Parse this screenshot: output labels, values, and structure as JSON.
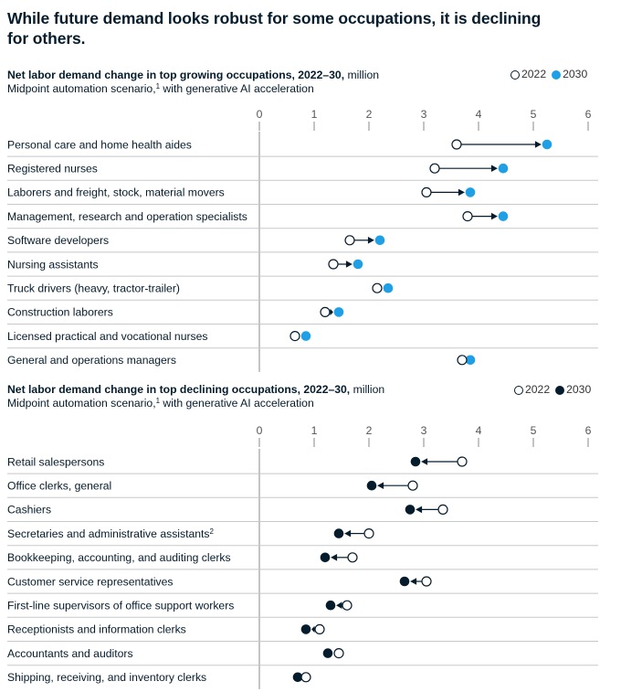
{
  "title": "While future demand looks robust for some occupations, it is declining for others.",
  "colors": {
    "dark": "#051c2c",
    "blue": "#1f9fe6",
    "divider": "#c8c8c8",
    "axis": "#888888"
  },
  "chart_data": [
    {
      "type": "dumbbell",
      "title_bold": "Net labor demand change in top growing occupations, 2022–30,",
      "title_unit": "million",
      "subtitle_pre": "Midpoint automation scenario,",
      "subtitle_sup": "1",
      "subtitle_post": " with generative AI acceleration",
      "legend": [
        "2022",
        "2030"
      ],
      "legend_position": "top-right",
      "end_color": "#1f9fe6",
      "xlim": [
        0,
        6
      ],
      "ticks": [
        "0",
        "1",
        "2",
        "3",
        "4",
        "5",
        "6"
      ],
      "rows": [
        {
          "label": "Personal care and home health aides",
          "y2022": 3.6,
          "y2030": 5.25
        },
        {
          "label": "Registered nurses",
          "y2022": 3.2,
          "y2030": 4.45
        },
        {
          "label": "Laborers and freight, stock, material movers",
          "y2022": 3.05,
          "y2030": 3.85
        },
        {
          "label": "Management, research and operation specialists",
          "y2022": 3.8,
          "y2030": 4.45
        },
        {
          "label": "Software developers",
          "y2022": 1.65,
          "y2030": 2.2
        },
        {
          "label": "Nursing assistants",
          "y2022": 1.35,
          "y2030": 1.8
        },
        {
          "label": "Truck drivers (heavy, tractor-trailer)",
          "y2022": 2.15,
          "y2030": 2.35
        },
        {
          "label": "Construction laborers",
          "y2022": 1.2,
          "y2030": 1.45
        },
        {
          "label": "Licensed practical and vocational nurses",
          "y2022": 0.65,
          "y2030": 0.85
        },
        {
          "label": "General and operations managers",
          "y2022": 3.7,
          "y2030": 3.85
        }
      ]
    },
    {
      "type": "dumbbell",
      "title_bold": "Net labor demand change in top declining occupations, 2022–30,",
      "title_unit": "million",
      "subtitle_pre": "Midpoint automation scenario,",
      "subtitle_sup": "1",
      "subtitle_post": " with generative AI acceleration",
      "legend": [
        "2022",
        "2030"
      ],
      "legend_position": "top-right",
      "end_color": "#051c2c",
      "xlim": [
        0,
        6
      ],
      "ticks": [
        "0",
        "1",
        "2",
        "3",
        "4",
        "5",
        "6"
      ],
      "rows": [
        {
          "label": "Retail salespersons",
          "y2022": 3.7,
          "y2030": 2.85
        },
        {
          "label": "Office clerks, general",
          "y2022": 2.8,
          "y2030": 2.05
        },
        {
          "label": "Cashiers",
          "y2022": 3.35,
          "y2030": 2.75
        },
        {
          "label": "Secretaries and administrative assistants",
          "sup": "2",
          "y2022": 2.0,
          "y2030": 1.45
        },
        {
          "label": "Bookkeeping, accounting, and auditing clerks",
          "y2022": 1.7,
          "y2030": 1.2
        },
        {
          "label": "Customer service representatives",
          "y2022": 3.05,
          "y2030": 2.65
        },
        {
          "label": "First-line supervisors of office support workers",
          "y2022": 1.6,
          "y2030": 1.3
        },
        {
          "label": "Receptionists and information clerks",
          "y2022": 1.1,
          "y2030": 0.85
        },
        {
          "label": "Accountants and auditors",
          "y2022": 1.45,
          "y2030": 1.25
        },
        {
          "label": "Shipping, receiving, and inventory clerks",
          "y2022": 0.85,
          "y2030": 0.7
        }
      ]
    }
  ]
}
